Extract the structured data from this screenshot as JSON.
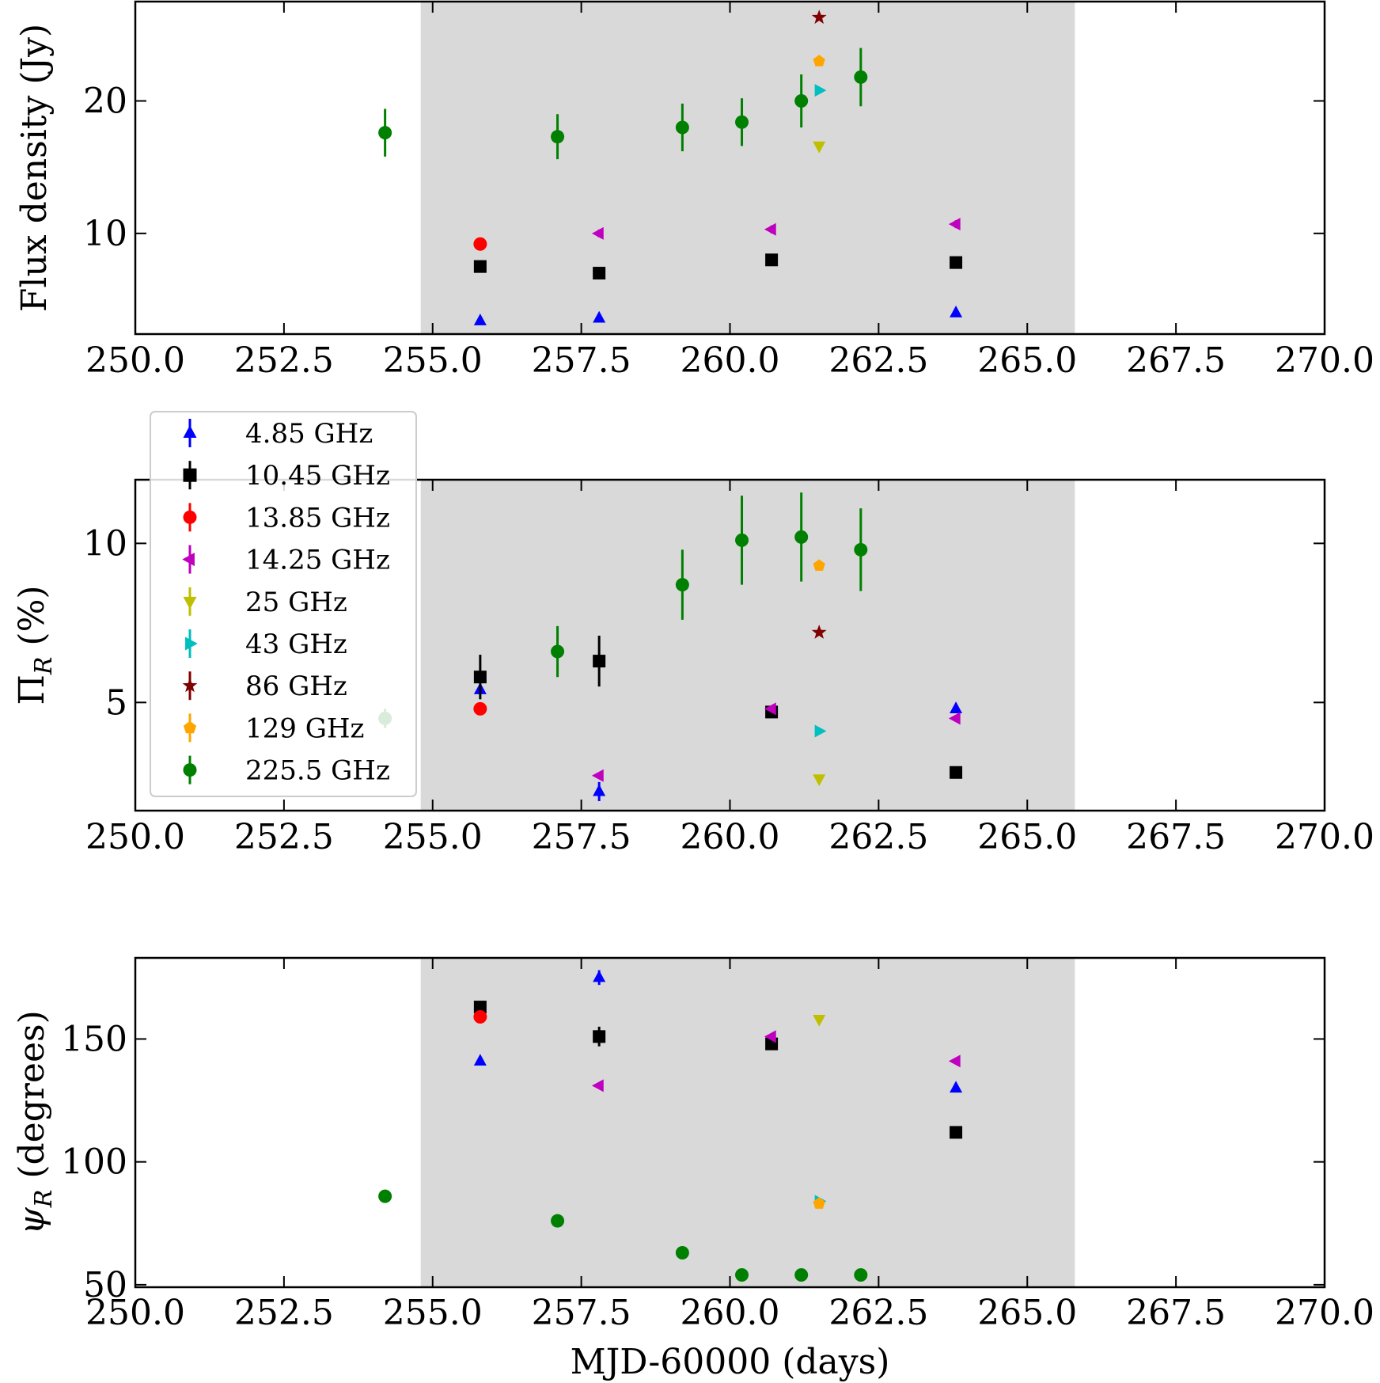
{
  "chart_data": {
    "type": "scatter",
    "xlabel": "MJD-60000 (days)",
    "xlim": [
      250,
      270
    ],
    "x_ticks": [
      "250.0",
      "252.5",
      "255.0",
      "257.5",
      "260.0",
      "262.5",
      "265.0",
      "267.5",
      "270.0"
    ],
    "shaded_region": [
      254.8,
      265.8
    ],
    "legend": {
      "placement": "upper-left of middle panel",
      "entries": [
        {
          "label": "4.85 GHz",
          "color": "#0000ff",
          "marker": "triangle-up"
        },
        {
          "label": "10.45 GHz",
          "color": "#000000",
          "marker": "square"
        },
        {
          "label": "13.85 GHz",
          "color": "#ff0000",
          "marker": "circle"
        },
        {
          "label": "14.25 GHz",
          "color": "#bf00bf",
          "marker": "triangle-left"
        },
        {
          "label": "25 GHz",
          "color": "#bfbf00",
          "marker": "triangle-down"
        },
        {
          "label": "43 GHz",
          "color": "#00bfbf",
          "marker": "triangle-right"
        },
        {
          "label": "86 GHz",
          "color": "#800000",
          "marker": "star"
        },
        {
          "label": "129 GHz",
          "color": "#ffa500",
          "marker": "pentagon"
        },
        {
          "label": "225.5 GHz",
          "color": "#008000",
          "marker": "circle"
        }
      ]
    },
    "panels": [
      {
        "ylabel_main": "Flux density (Jy)",
        "ylabel_sub": "",
        "ylabel_rest": "",
        "ylim": [
          2.4,
          27.5
        ],
        "y_ticks": [
          10,
          20
        ],
        "series": [
          {
            "legend": 0,
            "x": [
              255.8,
              257.8,
              263.8
            ],
            "y": [
              3.4,
              3.6,
              4.0
            ],
            "err": [
              0,
              0,
              0
            ]
          },
          {
            "legend": 1,
            "x": [
              255.8,
              257.8,
              260.7,
              263.8
            ],
            "y": [
              7.5,
              7.0,
              8.0,
              7.8
            ],
            "err": [
              0,
              0,
              0,
              0
            ]
          },
          {
            "legend": 2,
            "x": [
              255.8
            ],
            "y": [
              9.2
            ],
            "err": [
              0
            ]
          },
          {
            "legend": 3,
            "x": [
              257.8,
              260.7,
              263.8
            ],
            "y": [
              10.0,
              10.3,
              10.7
            ],
            "err": [
              0.3,
              0.3,
              0.3
            ]
          },
          {
            "legend": 4,
            "x": [
              261.5
            ],
            "y": [
              16.6
            ],
            "err": [
              0
            ]
          },
          {
            "legend": 5,
            "x": [
              261.5
            ],
            "y": [
              20.8
            ],
            "err": [
              0
            ]
          },
          {
            "legend": 6,
            "x": [
              261.5
            ],
            "y": [
              26.3
            ],
            "err": [
              0
            ]
          },
          {
            "legend": 7,
            "x": [
              261.5
            ],
            "y": [
              23.0
            ],
            "err": [
              0
            ]
          },
          {
            "legend": 8,
            "x": [
              254.2,
              257.1,
              259.2,
              260.2,
              261.2,
              262.2
            ],
            "y": [
              17.6,
              17.3,
              18.0,
              18.4,
              20.0,
              21.8
            ],
            "err": [
              1.8,
              1.7,
              1.8,
              1.8,
              2.0,
              2.2
            ]
          }
        ]
      },
      {
        "ylabel_main": "Π",
        "ylabel_sub": "R",
        "ylabel_rest": " (%)",
        "ylim": [
          1.6,
          12.0
        ],
        "y_ticks": [
          5,
          10
        ],
        "series": [
          {
            "legend": 0,
            "x": [
              255.8,
              257.8,
              263.8
            ],
            "y": [
              5.4,
              2.2,
              4.8
            ],
            "err": [
              0,
              0.3,
              0
            ]
          },
          {
            "legend": 1,
            "x": [
              255.8,
              257.8,
              260.7,
              263.8
            ],
            "y": [
              5.8,
              6.3,
              4.7,
              2.8
            ],
            "err": [
              0.7,
              0.8,
              0,
              0
            ]
          },
          {
            "legend": 2,
            "x": [
              255.8
            ],
            "y": [
              4.8
            ],
            "err": [
              0
            ]
          },
          {
            "legend": 3,
            "x": [
              257.8,
              260.7,
              263.8
            ],
            "y": [
              2.7,
              4.8,
              4.5
            ],
            "err": [
              0,
              0,
              0
            ]
          },
          {
            "legend": 4,
            "x": [
              261.5
            ],
            "y": [
              2.6
            ],
            "err": [
              0
            ]
          },
          {
            "legend": 5,
            "x": [
              261.5
            ],
            "y": [
              4.1
            ],
            "err": [
              0
            ]
          },
          {
            "legend": 6,
            "x": [
              261.5
            ],
            "y": [
              7.2
            ],
            "err": [
              0
            ]
          },
          {
            "legend": 7,
            "x": [
              261.5
            ],
            "y": [
              9.3
            ],
            "err": [
              0
            ]
          },
          {
            "legend": 8,
            "x": [
              254.2,
              257.1,
              259.2,
              260.2,
              261.2,
              262.2
            ],
            "y": [
              4.5,
              6.6,
              8.7,
              10.1,
              10.2,
              9.8
            ],
            "err": [
              0.3,
              0.8,
              1.1,
              1.4,
              1.4,
              1.3
            ]
          }
        ]
      },
      {
        "ylabel_main": "ψ",
        "ylabel_sub": "R",
        "ylabel_rest": " (degrees)",
        "ylim": [
          49,
          183
        ],
        "y_ticks": [
          50,
          100,
          150
        ],
        "series": [
          {
            "legend": 0,
            "x": [
              255.8,
              257.8,
              263.8
            ],
            "y": [
              141,
              175,
              130
            ],
            "err": [
              0,
              3,
              0
            ]
          },
          {
            "legend": 1,
            "x": [
              255.8,
              257.8,
              260.7,
              263.8
            ],
            "y": [
              163,
              151,
              148,
              112
            ],
            "err": [
              0,
              4,
              0,
              0
            ]
          },
          {
            "legend": 2,
            "x": [
              255.8
            ],
            "y": [
              159
            ],
            "err": [
              0
            ]
          },
          {
            "legend": 3,
            "x": [
              257.8,
              260.7,
              263.8
            ],
            "y": [
              131,
              151,
              141
            ],
            "err": [
              0,
              0,
              0
            ]
          },
          {
            "legend": 4,
            "x": [
              261.5
            ],
            "y": [
              158
            ],
            "err": [
              0
            ]
          },
          {
            "legend": 5,
            "x": [
              261.5
            ],
            "y": [
              84
            ],
            "err": [
              0
            ]
          },
          {
            "legend": 7,
            "x": [
              261.5
            ],
            "y": [
              83
            ],
            "err": [
              0
            ]
          },
          {
            "legend": 8,
            "x": [
              254.2,
              257.1,
              259.2,
              260.2,
              261.2,
              262.2
            ],
            "y": [
              86,
              76,
              63,
              54,
              54,
              54
            ],
            "err": [
              0,
              0,
              0,
              0,
              0,
              0
            ]
          }
        ]
      }
    ]
  }
}
